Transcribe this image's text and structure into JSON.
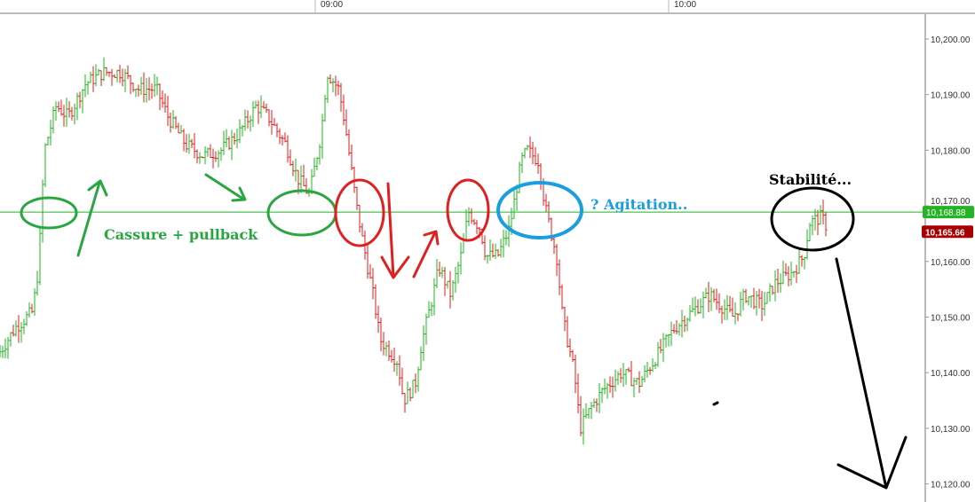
{
  "chart_data": {
    "type": "ohlc",
    "title": "",
    "xlabel": "",
    "ylabel": "",
    "x_ticks": [
      "09:00",
      "10:00"
    ],
    "y_ticks": [
      "10,200.00",
      "10,190.00",
      "10,180.00",
      "10,170.00",
      "10,160.00",
      "10,150.00",
      "10,140.00",
      "10,130.00",
      "10,120.00"
    ],
    "ylim": [
      10117,
      10207
    ],
    "grid": false,
    "up_color": "#22b422",
    "down_color": "#e01b1b",
    "price_path": [
      [
        "08:06",
        10143
      ],
      [
        "08:09",
        10148
      ],
      [
        "08:12",
        10151
      ],
      [
        "08:13",
        10159
      ],
      [
        "08:14",
        10180
      ],
      [
        "08:16",
        10188
      ],
      [
        "08:18",
        10186
      ],
      [
        "08:21",
        10192
      ],
      [
        "08:24",
        10194
      ],
      [
        "08:27",
        10194
      ],
      [
        "08:30",
        10191
      ],
      [
        "08:33",
        10191
      ],
      [
        "08:35",
        10186
      ],
      [
        "08:38",
        10181
      ],
      [
        "08:41",
        10179
      ],
      [
        "08:44",
        10180
      ],
      [
        "08:47",
        10183
      ],
      [
        "08:50",
        10188
      ],
      [
        "08:52",
        10186
      ],
      [
        "08:55",
        10181
      ],
      [
        "08:57",
        10175
      ],
      [
        "08:59",
        10172
      ],
      [
        "09:01",
        10183
      ],
      [
        "09:02",
        10194
      ],
      [
        "09:04",
        10191
      ],
      [
        "09:05",
        10185
      ],
      [
        "09:07",
        10170
      ],
      [
        "09:08",
        10164
      ],
      [
        "09:10",
        10153
      ],
      [
        "09:11",
        10146
      ],
      [
        "09:14",
        10142
      ],
      [
        "09:15",
        10135
      ],
      [
        "09:17",
        10138
      ],
      [
        "09:18",
        10145
      ],
      [
        "09:20",
        10154
      ],
      [
        "09:21",
        10159
      ],
      [
        "09:23",
        10154
      ],
      [
        "09:25",
        10162
      ],
      [
        "09:26",
        10169
      ],
      [
        "09:28",
        10166
      ],
      [
        "09:29",
        10161
      ],
      [
        "09:31",
        10161
      ],
      [
        "09:33",
        10166
      ],
      [
        "09:35",
        10178
      ],
      [
        "09:36",
        10180
      ],
      [
        "09:38",
        10178
      ],
      [
        "09:39",
        10170
      ],
      [
        "09:41",
        10161
      ],
      [
        "09:42",
        10150
      ],
      [
        "09:44",
        10140
      ],
      [
        "09:45",
        10130
      ],
      [
        "09:47",
        10134
      ],
      [
        "09:49",
        10137
      ],
      [
        "09:52",
        10140
      ],
      [
        "09:55",
        10138
      ],
      [
        "09:58",
        10143
      ],
      [
        "10:01",
        10148
      ],
      [
        "10:04",
        10151
      ],
      [
        "10:07",
        10154
      ],
      [
        "10:09",
        10152
      ],
      [
        "10:11",
        10150
      ],
      [
        "10:13",
        10154
      ],
      [
        "10:16",
        10152
      ],
      [
        "10:18",
        10156
      ],
      [
        "10:21",
        10158
      ],
      [
        "10:23",
        10161
      ],
      [
        "10:24",
        10167
      ],
      [
        "10:26",
        10168
      ],
      [
        "10:27",
        10166
      ]
    ],
    "horizontal_line": {
      "value": 10168.88,
      "label": "10,168.88",
      "color": "#22b422"
    },
    "last_price": {
      "value": 10165.66,
      "label": "10,165.66",
      "color": "#a80000"
    },
    "annotations": {
      "green_text": "Cassure + pullback",
      "blue_text": "? Agitation..",
      "black_text": "Stabilité...",
      "green_color": "#2aa640",
      "red_color": "#e02020",
      "blue_color": "#1a9ee0",
      "black_color": "#000000"
    }
  }
}
